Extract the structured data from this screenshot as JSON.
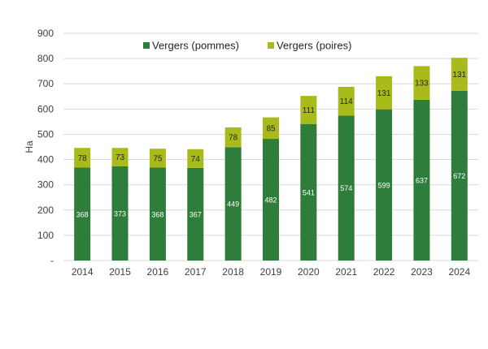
{
  "chart_data": {
    "type": "bar",
    "stacked": true,
    "categories": [
      "2014",
      "2015",
      "2016",
      "2017",
      "2018",
      "2019",
      "2020",
      "2021",
      "2022",
      "2023",
      "2024"
    ],
    "series": [
      {
        "name": "Vergers (pommes)",
        "color": "#2e7d3a",
        "values": [
          368,
          373,
          368,
          367,
          449,
          482,
          541,
          574,
          599,
          637,
          672
        ]
      },
      {
        "name": "Vergers (poires)",
        "color": "#a8bb1a",
        "values": [
          78,
          73,
          75,
          74,
          78,
          85,
          111,
          114,
          131,
          133,
          131
        ]
      }
    ],
    "ylabel": "Ha",
    "xlabel": "",
    "ylim": [
      0,
      900
    ],
    "yticks": [
      0,
      100,
      200,
      300,
      400,
      500,
      600,
      700,
      800,
      900
    ],
    "ytick_labels": [
      "-",
      "100",
      "200",
      "300",
      "400",
      "500",
      "600",
      "700",
      "800",
      "900"
    ],
    "grid": true,
    "legend_position": "top-center"
  }
}
